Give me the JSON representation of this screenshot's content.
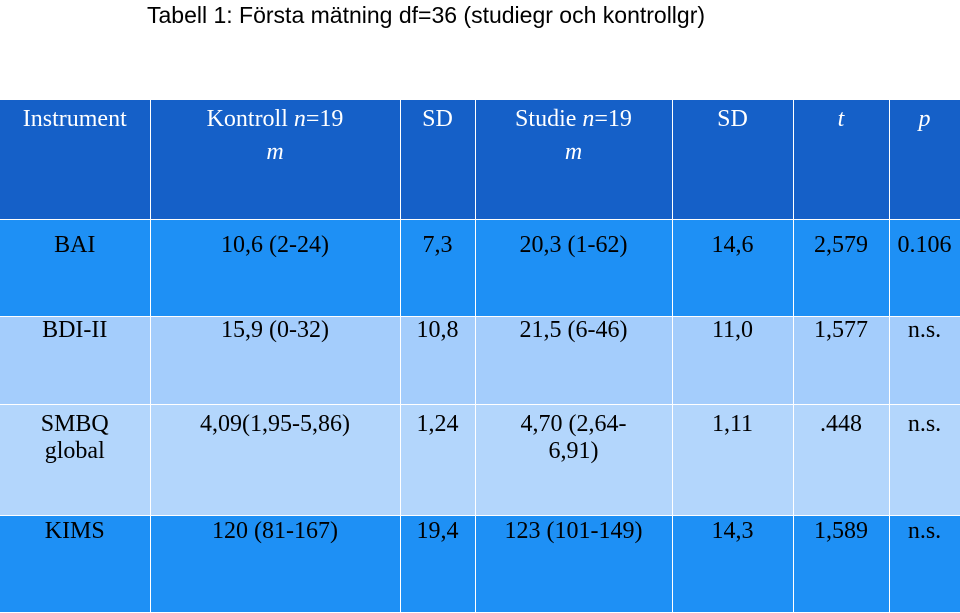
{
  "title": "Tabell 1:  Första mätning df=36 (studiegr och kontrollgr)",
  "columns": {
    "instrument": "Instrument",
    "kontroll_label": "Kontroll ",
    "kontroll_n_var": "n",
    "kontroll_n_val": "=19",
    "kontroll_sub": "m",
    "sd1": "SD",
    "studie_label": "Studie ",
    "studie_n_var": "n",
    "studie_n_val": "=19",
    "studie_sub": "m",
    "sd2": "SD",
    "t": "t",
    "p": "p"
  },
  "rows": [
    {
      "instrument": "BAI",
      "kontroll": "10,6 (2-24)",
      "sd1": "7,3",
      "studie": "20,3 (1-62)",
      "sd2": "14,6",
      "t": "2,579",
      "p": "0.106"
    },
    {
      "instrument": "BDI-II",
      "kontroll": "15,9 (0-32)",
      "sd1": "10,8",
      "studie": "21,5 (6-46)",
      "sd2": "11,0",
      "t": "1,577",
      "p": "n.s."
    },
    {
      "instrument": "SMBQ global",
      "kontroll": "4,09(1,95-5,86)",
      "sd1": "1,24",
      "studie": "4,70 (2,64-6,91)",
      "sd2": "1,11",
      "t": ".448",
      "p": "n.s."
    },
    {
      "instrument": "KIMS",
      "kontroll": "120 (81-167)",
      "sd1": "19,4",
      "studie": "123 (101-149)",
      "sd2": "14,3",
      "t": "1,589",
      "p": "n.s."
    }
  ],
  "colors": {
    "header_bg": "#1560c8",
    "row_dark_bg": "#1e90f5",
    "row_light_bg": "#a4cdfc",
    "row_lighter_bg": "#b3d6fc"
  }
}
